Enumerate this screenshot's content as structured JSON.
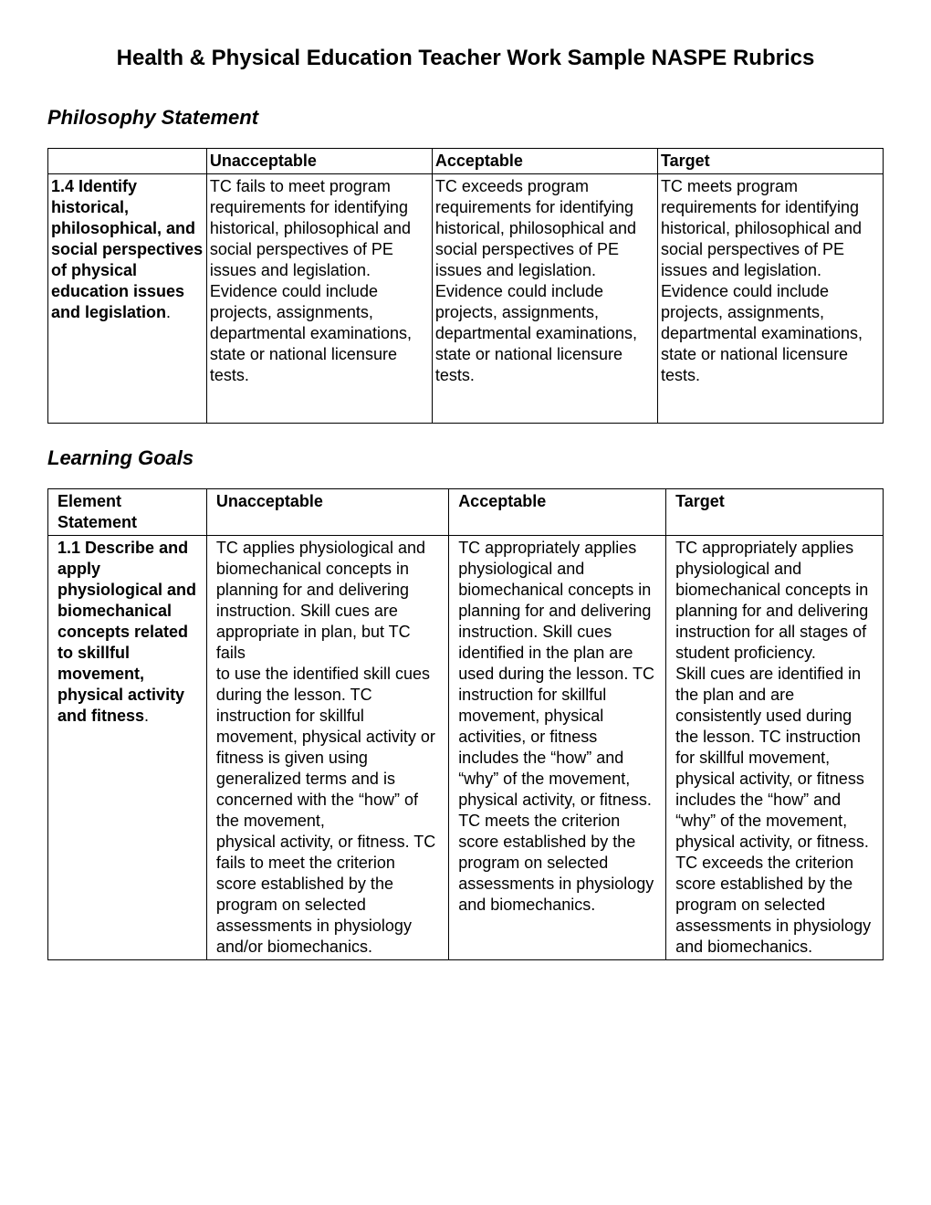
{
  "title": "Health & Physical Education Teacher Work Sample NASPE Rubrics",
  "section1": {
    "heading": "Philosophy Statement",
    "headers": {
      "c1": "Unacceptable",
      "c2": "Acceptable",
      "c3": "Target"
    },
    "row": {
      "criterion": "1.4 Identify historical, philosophical, and social perspectives of physical education issues and legislation",
      "period": ".",
      "unacceptable": "TC fails to meet program requirements for identifying historical, philosophical and social perspectives of PE issues and legislation.\nEvidence could include projects, assignments, departmental examinations, state or national licensure tests.",
      "acceptable": "TC exceeds program requirements for identifying historical, philosophical and social perspectives of PE issues and legislation.\nEvidence could include projects, assignments, departmental examinations, state or national licensure tests.",
      "target": "TC meets program requirements for identifying historical, philosophical and social perspectives of PE issues and legislation.\nEvidence could include projects, assignments, departmental examinations, state or national licensure tests."
    }
  },
  "section2": {
    "heading": "Learning Goals",
    "headers": {
      "c0": "Element Statement",
      "c1": "Unacceptable",
      "c2": "Acceptable",
      "c3": "Target"
    },
    "row": {
      "criterion": "1.1 Describe and apply physiological and biomechanical concepts related to skillful movement, physical activity and fitness",
      "period": ".",
      "unacceptable": "TC applies physiological and biomechanical concepts in planning for and delivering instruction. Skill cues are\nappropriate in plan, but TC fails\nto use the identified skill cues during the lesson. TC instruction for skillful movement, physical activity or\nfitness is given using generalized terms and is concerned with the “how” of the movement,\nphysical activity, or fitness. TC fails to meet the criterion score established by the program on selected assessments in physiology and/or biomechanics.",
      "acceptable": "TC appropriately applies physiological and biomechanical concepts in planning for and delivering instruction. Skill cues\nidentified in the plan are used during the lesson. TC instruction for skillful movement, physical activities, or fitness includes the “how” and “why” of the movement, physical activity, or fitness. TC meets the criterion score established by the program on selected assessments in physiology and biomechanics.",
      "target": "TC appropriately applies physiological and biomechanical concepts in planning for and delivering instruction for all stages of student proficiency.\nSkill cues are identified in the plan and are consistently used during the lesson.  TC instruction for skillful movement, physical activity, or fitness includes the “how” and “why” of the movement, physical activity, or fitness.  TC exceeds the criterion score established by the program on selected assessments in physiology and biomechanics."
    }
  }
}
